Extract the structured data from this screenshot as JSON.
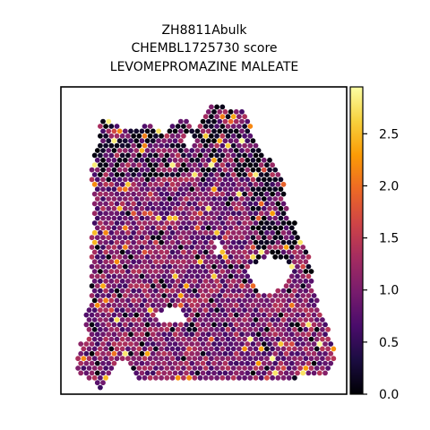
{
  "chart_data": {
    "type": "scatter",
    "subtype": "spatial-hexagonal-spot-map",
    "title_lines": [
      "ZH8811Abulk",
      "CHEMBL1725730 score",
      "LEVOMEPROMAZINE MALEATE"
    ],
    "xlabel": "",
    "ylabel": "",
    "axes_ticks_visible": false,
    "grid": false,
    "colormap": "inferno",
    "colorbar": {
      "position": "right",
      "range": [
        0.0,
        2.95
      ],
      "ticks": [
        0.0,
        0.5,
        1.0,
        1.5,
        2.0,
        2.5
      ],
      "tick_labels": [
        "0.0",
        "0.5",
        "1.0",
        "1.5",
        "2.0",
        "2.5"
      ]
    },
    "value_distribution": {
      "min": 0.0,
      "max": 2.95,
      "typical_range": [
        0.4,
        1.6
      ],
      "note_values_sparse_high": [
        2.0,
        2.9
      ]
    },
    "colors": {
      "inferno_stops": [
        "#000004",
        "#1b0c41",
        "#4a0c6b",
        "#781c6d",
        "#a52c60",
        "#cf4446",
        "#ed6925",
        "#fb9b06",
        "#f7d13d",
        "#fcffa4"
      ]
    }
  }
}
